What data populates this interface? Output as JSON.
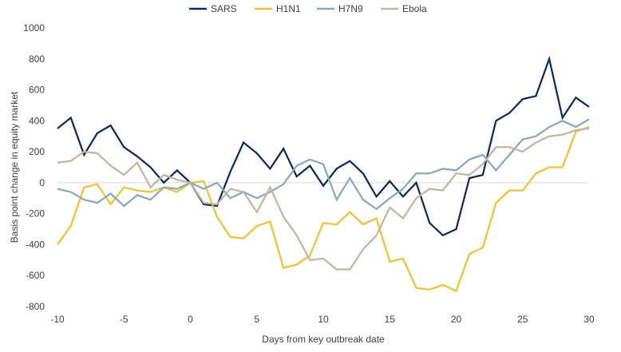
{
  "chart_data": {
    "type": "line",
    "xlabel": "Days from key outbreak date",
    "ylabel": "Basis point change in equity market",
    "xlim": [
      -10,
      30
    ],
    "ylim": [
      -800,
      1000
    ],
    "x_ticks": [
      -10,
      -5,
      0,
      5,
      10,
      15,
      20,
      25,
      30
    ],
    "y_ticks": [
      -800,
      -600,
      -400,
      -200,
      0,
      200,
      400,
      600,
      800,
      1000
    ],
    "grid": false,
    "legend_position": "top-center",
    "x": [
      -10,
      -9,
      -8,
      -7,
      -6,
      -5,
      -4,
      -3,
      -2,
      -1,
      0,
      1,
      2,
      3,
      4,
      5,
      6,
      7,
      8,
      9,
      10,
      11,
      12,
      13,
      14,
      15,
      16,
      17,
      18,
      19,
      20,
      21,
      22,
      23,
      24,
      25,
      26,
      27,
      28,
      29,
      30
    ],
    "series": [
      {
        "name": "SARS",
        "color": "#0d2a5c",
        "values": [
          350,
          420,
          180,
          320,
          370,
          230,
          170,
          100,
          0,
          80,
          0,
          -140,
          -150,
          70,
          260,
          190,
          90,
          220,
          40,
          110,
          -20,
          90,
          140,
          60,
          -90,
          10,
          -90,
          0,
          -260,
          -340,
          -300,
          30,
          50,
          400,
          450,
          540,
          560,
          800,
          420,
          550,
          490
        ]
      },
      {
        "name": "H1N1",
        "color": "#f5c12e",
        "values": [
          -400,
          -280,
          -30,
          -10,
          -140,
          -30,
          -50,
          -60,
          -30,
          -60,
          0,
          10,
          -220,
          -350,
          -360,
          -280,
          -250,
          -550,
          -530,
          -470,
          -260,
          -270,
          -190,
          -270,
          -230,
          -510,
          -490,
          -680,
          -690,
          -660,
          -700,
          -460,
          -420,
          -130,
          -50,
          -50,
          60,
          100,
          100,
          330,
          360
        ]
      },
      {
        "name": "H7N9",
        "color": "#87a9bd",
        "values": [
          -40,
          -60,
          -110,
          -130,
          -70,
          -150,
          -80,
          -110,
          -30,
          -40,
          0,
          -40,
          0,
          -100,
          -60,
          -100,
          -60,
          -10,
          110,
          150,
          120,
          -110,
          30,
          -110,
          -170,
          -100,
          -40,
          60,
          60,
          90,
          80,
          150,
          180,
          80,
          180,
          280,
          300,
          360,
          400,
          360,
          410
        ]
      },
      {
        "name": "Ebola",
        "color": "#c2b6a0",
        "values": [
          130,
          140,
          200,
          190,
          110,
          50,
          130,
          -30,
          50,
          20,
          0,
          -130,
          -140,
          -40,
          -60,
          -190,
          -30,
          -220,
          -340,
          -500,
          -490,
          -560,
          -560,
          -430,
          -340,
          -160,
          -230,
          -100,
          -40,
          -50,
          60,
          50,
          120,
          230,
          230,
          200,
          260,
          300,
          310,
          340,
          350
        ]
      }
    ]
  }
}
